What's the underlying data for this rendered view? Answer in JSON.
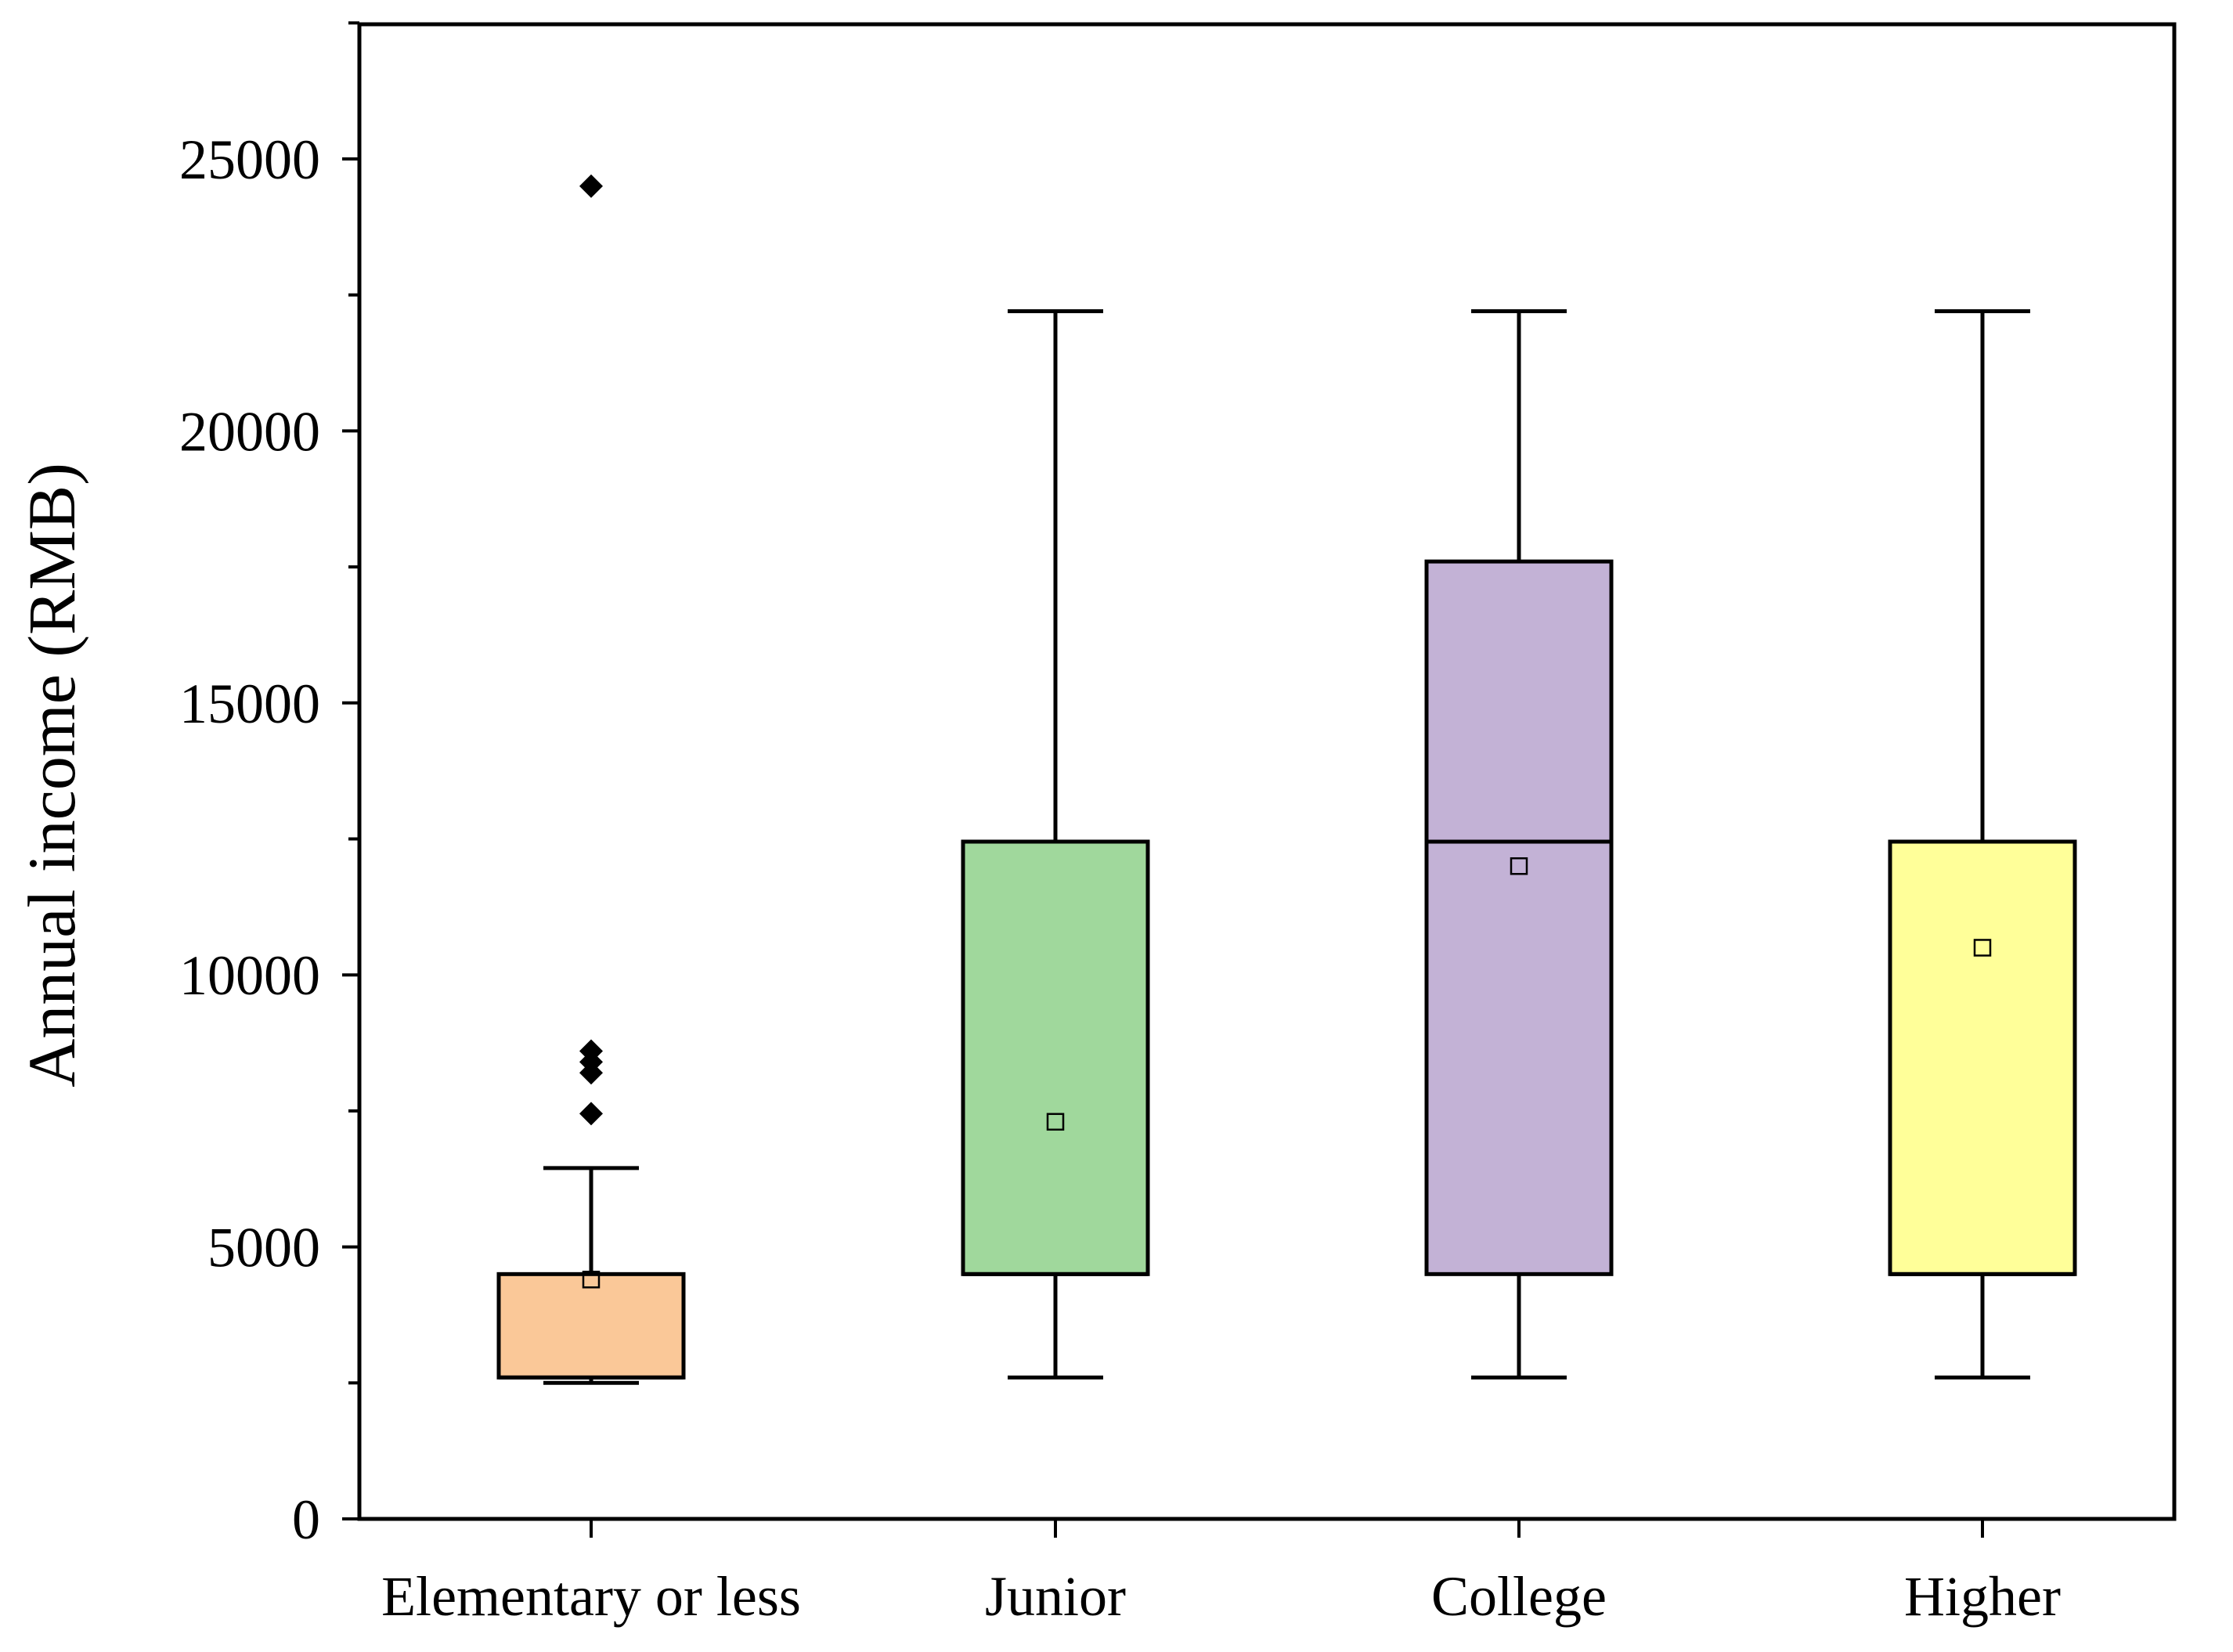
{
  "chart_data": {
    "type": "box",
    "title": "",
    "xlabel": "",
    "ylabel": "Annual income (RMB)",
    "ylim": [
      0,
      27500
    ],
    "y_ticks": [
      0,
      5000,
      10000,
      15000,
      20000,
      25000
    ],
    "y_tick_labels": [
      "0",
      "5000",
      "10000",
      "15000",
      "20000",
      "25000"
    ],
    "categories": [
      "Elementary or less",
      "Junior",
      "College",
      "Higher"
    ],
    "boxes": [
      {
        "category": "Elementary or less",
        "color": "#FAC898",
        "whisker_low": 2500,
        "q1": 2600,
        "median": 2600,
        "q3": 4500,
        "whisker_high": 6450,
        "mean": 4400,
        "outliers": [
          7450,
          8200,
          8400,
          8600,
          24500
        ]
      },
      {
        "category": "Junior",
        "color": "#A0D89C",
        "whisker_low": 2600,
        "q1": 4500,
        "median": 4500,
        "q3": 12450,
        "whisker_high": 22200,
        "mean": 7300,
        "outliers": []
      },
      {
        "category": "College",
        "color": "#C3B2D6",
        "whisker_low": 2600,
        "q1": 4500,
        "median": 12450,
        "q3": 17600,
        "whisker_high": 22200,
        "mean": 12000,
        "outliers": []
      },
      {
        "category": "Higher",
        "color": "#FFFF99",
        "whisker_low": 2600,
        "q1": 4500,
        "median": 4500,
        "q3": 12450,
        "whisker_high": 22200,
        "mean": 10500,
        "outliers": []
      }
    ],
    "grid": false,
    "legend": "none"
  }
}
